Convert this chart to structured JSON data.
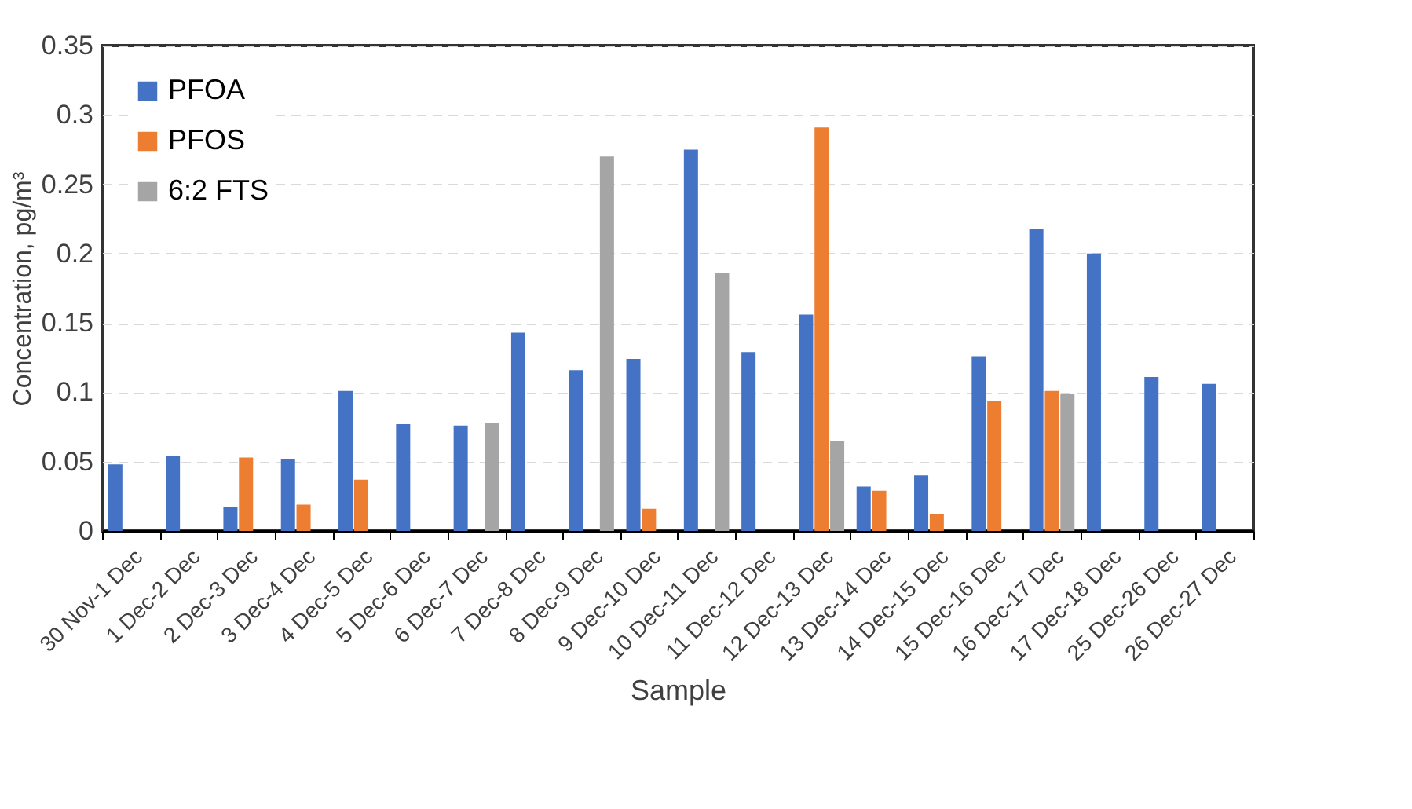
{
  "chart_data": {
    "type": "bar",
    "xlabel": "Sample",
    "ylabel": "Concentration, pg/m³",
    "categories": [
      "30 Nov-1 Dec",
      "1 Dec-2 Dec",
      "2 Dec-3 Dec",
      "3 Dec-4 Dec",
      "4 Dec-5 Dec",
      "5 Dec-6 Dec",
      "6 Dec-7 Dec",
      "7 Dec-8 Dec",
      "8 Dec-9 Dec",
      "9 Dec-10 Dec",
      "10 Dec-11 Dec",
      "11 Dec-12 Dec",
      "12 Dec-13 Dec",
      "13 Dec-14 Dec",
      "14 Dec-15 Dec",
      "15 Dec-16 Dec",
      "16 Dec-17 Dec",
      "17 Dec-18 Dec",
      "25 Dec-26 Dec",
      "26 Dec-27 Dec"
    ],
    "series": [
      {
        "name": "PFOA",
        "color": "#4472c4",
        "values": [
          0.048,
          0.054,
          0.017,
          0.052,
          0.101,
          0.077,
          0.076,
          0.143,
          0.116,
          0.124,
          0.275,
          0.129,
          0.156,
          0.032,
          0.04,
          0.126,
          0.218,
          0.2,
          0.111,
          0.106
        ]
      },
      {
        "name": "PFOS",
        "color": "#ed7d31",
        "values": [
          null,
          null,
          0.053,
          0.019,
          0.037,
          null,
          null,
          null,
          null,
          0.016,
          null,
          null,
          0.291,
          0.029,
          0.012,
          0.094,
          0.101,
          null,
          null,
          null
        ]
      },
      {
        "name": "6:2 FTS",
        "color": "#a5a5a5",
        "values": [
          null,
          null,
          null,
          null,
          null,
          null,
          0.078,
          null,
          0.27,
          null,
          0.186,
          null,
          0.065,
          null,
          null,
          null,
          0.099,
          null,
          null,
          null
        ]
      }
    ],
    "ylim": [
      0,
      0.35
    ],
    "yticks": [
      0,
      0.05,
      0.1,
      0.15,
      0.2,
      0.25,
      0.3,
      0.35
    ],
    "grid": "y",
    "legend": "top left"
  }
}
